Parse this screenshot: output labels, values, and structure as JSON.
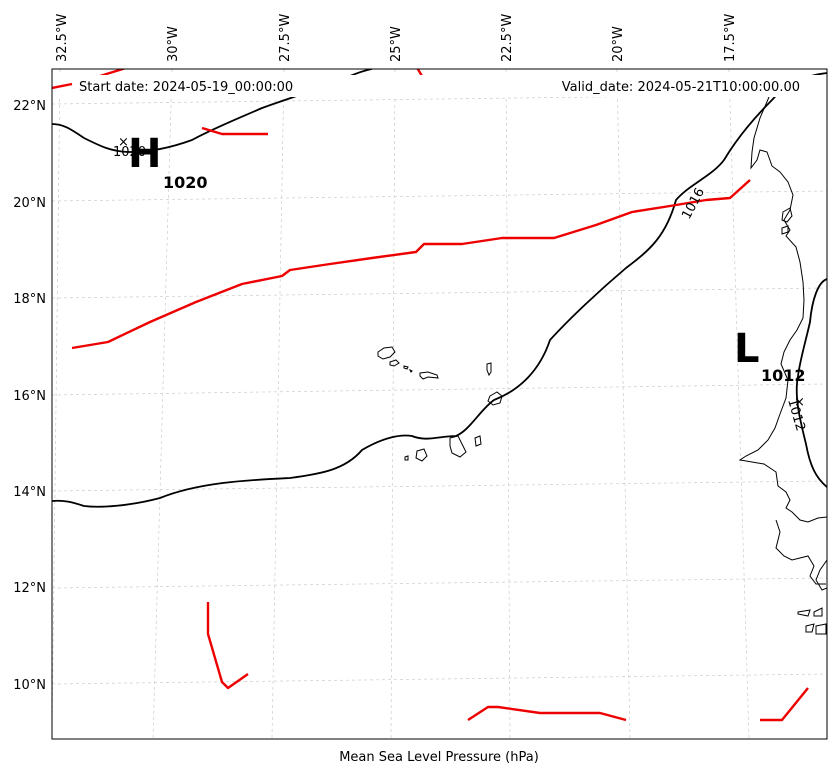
{
  "map": {
    "start_date": "Start date: 2024-05-19_00:00:00",
    "valid_date": "Valid_date: 2024-05-21T10:00:00.00",
    "caption": "Mean Sea Level Pressure (hPa)",
    "lon_labels": [
      "32.5°W",
      "30°W",
      "27.5°W",
      "25°W",
      "22.5°W",
      "20°W",
      "17.5°W"
    ],
    "lat_labels": [
      "22°N",
      "20°N",
      "18°N",
      "16°N",
      "14°N",
      "12°N",
      "10°N"
    ],
    "high": {
      "letter": "H",
      "value": "1020"
    },
    "low": {
      "letter": "L",
      "value": "1012"
    },
    "isobar_labels": [
      "1020",
      "1016",
      "1012"
    ],
    "colors": {
      "isobar": "#000000",
      "track": "#ee0000",
      "grid": "#cccccc"
    }
  }
}
